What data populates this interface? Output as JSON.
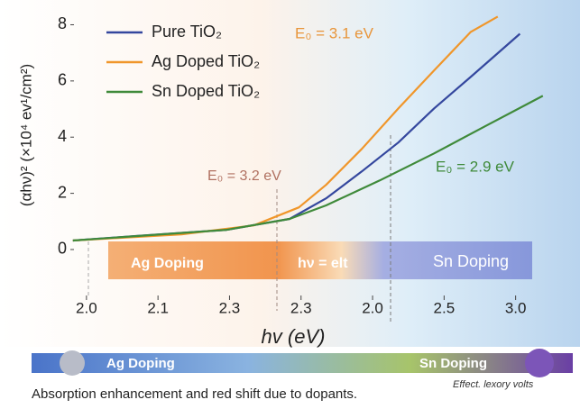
{
  "chart_data": {
    "type": "line",
    "y_label": "(αhν)² (×10⁴ ev¹/cm²)",
    "x_label": "hv (eV)",
    "xlim": [
      -0.2,
      6.9
    ],
    "ylim": [
      -1.7,
      8.4
    ],
    "yticks": [
      0,
      2,
      4,
      6,
      8
    ],
    "xticks": [
      {
        "value": 0,
        "label": "2.0"
      },
      {
        "value": 1,
        "label": "2.1"
      },
      {
        "value": 2,
        "label": "2.3"
      },
      {
        "value": 3,
        "label": "2.3"
      },
      {
        "value": 4,
        "label": "2.0"
      },
      {
        "value": 5,
        "label": "2.5"
      },
      {
        "value": 6,
        "label": "3.0"
      }
    ],
    "grid": false,
    "legend": "upper left",
    "series": [
      {
        "name": "Pure TiO₂",
        "color": "#34479e",
        "x": [
          -0.19,
          0.69,
          1.96,
          2.84,
          3.35,
          3.85,
          4.36,
          4.86,
          5.37,
          6.06
        ],
        "values": [
          0.32,
          0.48,
          0.7,
          1.09,
          1.82,
          2.78,
          3.81,
          5.02,
          6.14,
          7.68
        ]
      },
      {
        "name": "Ag Doped TiO₂",
        "color": "#f0962a",
        "x": [
          -0.19,
          1.33,
          2.34,
          2.97,
          3.35,
          3.85,
          4.36,
          4.86,
          5.37,
          5.75
        ],
        "values": [
          0.32,
          0.54,
          0.86,
          1.5,
          2.3,
          3.58,
          5.02,
          6.37,
          7.74,
          8.29
        ]
      },
      {
        "name": "Sn Doped TiO₂",
        "color": "#3f8a3a",
        "x": [
          -0.19,
          1.96,
          2.84,
          3.35,
          4.1,
          4.86,
          5.62,
          6.38
        ],
        "values": [
          0.32,
          0.7,
          1.09,
          1.57,
          2.46,
          3.42,
          4.45,
          5.47
        ]
      }
    ],
    "annotations": [
      "E₀ = 3.1 eV",
      "E₀ = 3.2 eV",
      "E₀ = 2.9 eV"
    ],
    "bands": [
      "Ag Doping",
      "hν = elt",
      "Sn Doping"
    ],
    "bottom_bar": [
      "Ag Doping",
      "Sn Doping"
    ],
    "caption": "Absorption enhancement and red shift due to dopants.",
    "caption_note": "Effect. lexory volts"
  }
}
